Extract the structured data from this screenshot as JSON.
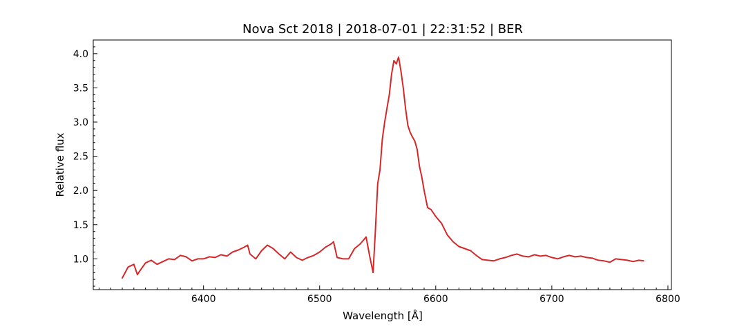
{
  "chart_data": {
    "type": "line",
    "title": "Nova Sct 2018 | 2018-07-01 | 22:31:52 | BER",
    "xlabel": "Wavelength [Å]",
    "ylabel": "Relative flux",
    "xlim": [
      6305,
      6803
    ],
    "ylim": [
      0.55,
      4.2
    ],
    "x_ticks": [
      6400,
      6500,
      6600,
      6700,
      6800
    ],
    "y_ticks": [
      1.0,
      1.5,
      2.0,
      2.5,
      3.0,
      3.5,
      4.0
    ],
    "x_tick_labels": [
      "6400",
      "6500",
      "6600",
      "6700",
      "6800"
    ],
    "y_tick_labels": [
      "1.0",
      "1.5",
      "2.0",
      "2.5",
      "3.0",
      "3.5",
      "4.0"
    ],
    "grid": false,
    "color": "#d62728",
    "series": [
      {
        "x": [
          6330,
          6335,
          6340,
          6343,
          6345,
          6350,
          6355,
          6360,
          6365,
          6370,
          6375,
          6380,
          6385,
          6390,
          6395,
          6400,
          6405,
          6410,
          6415,
          6420,
          6425,
          6430,
          6435,
          6438,
          6440,
          6445,
          6450,
          6455,
          6460,
          6465,
          6470,
          6475,
          6480,
          6485,
          6490,
          6495,
          6500,
          6505,
          6510,
          6512,
          6515,
          6520,
          6525,
          6530,
          6535,
          6540,
          6543,
          6546,
          6548,
          6550,
          6552,
          6554,
          6556,
          6558,
          6560,
          6562,
          6564,
          6566,
          6568,
          6570,
          6572,
          6574,
          6576,
          6578,
          6580,
          6582,
          6584,
          6586,
          6588,
          6590,
          6593,
          6596,
          6600,
          6605,
          6610,
          6615,
          6620,
          6625,
          6630,
          6635,
          6640,
          6645,
          6650,
          6655,
          6660,
          6665,
          6670,
          6675,
          6680,
          6685,
          6690,
          6695,
          6700,
          6705,
          6710,
          6715,
          6720,
          6725,
          6730,
          6735,
          6740,
          6745,
          6750,
          6755,
          6760,
          6765,
          6770,
          6775,
          6779
        ],
        "y": [
          0.72,
          0.88,
          0.92,
          0.77,
          0.82,
          0.94,
          0.98,
          0.92,
          0.96,
          1.0,
          0.99,
          1.05,
          1.03,
          0.97,
          1.0,
          1.0,
          1.03,
          1.02,
          1.06,
          1.04,
          1.1,
          1.13,
          1.17,
          1.2,
          1.07,
          1.0,
          1.12,
          1.2,
          1.15,
          1.07,
          1.0,
          1.1,
          1.02,
          0.98,
          1.02,
          1.05,
          1.1,
          1.17,
          1.22,
          1.25,
          1.02,
          1.0,
          1.0,
          1.15,
          1.22,
          1.32,
          1.05,
          0.8,
          1.4,
          2.1,
          2.3,
          2.75,
          3.0,
          3.2,
          3.4,
          3.7,
          3.9,
          3.85,
          3.95,
          3.75,
          3.5,
          3.2,
          2.95,
          2.85,
          2.78,
          2.72,
          2.6,
          2.35,
          2.2,
          2.0,
          1.75,
          1.72,
          1.62,
          1.52,
          1.35,
          1.25,
          1.18,
          1.15,
          1.12,
          1.05,
          0.99,
          0.98,
          0.97,
          1.0,
          1.02,
          1.05,
          1.07,
          1.04,
          1.03,
          1.06,
          1.04,
          1.05,
          1.02,
          1.0,
          1.03,
          1.05,
          1.03,
          1.04,
          1.02,
          1.01,
          0.98,
          0.97,
          0.95,
          1.0,
          0.99,
          0.98,
          0.96,
          0.98,
          0.97
        ]
      }
    ]
  }
}
